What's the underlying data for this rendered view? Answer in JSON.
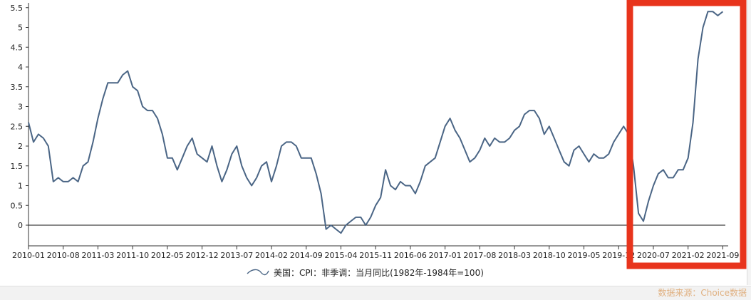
{
  "chart_data": {
    "type": "line",
    "title": "",
    "xlabel": "",
    "ylabel": "",
    "ylim": [
      -0.35,
      5.6
    ],
    "y_ticks": [
      "5.5",
      "5",
      "4.5",
      "4",
      "3.5",
      "3",
      "2.5",
      "2",
      "1.5",
      "1",
      "0.5",
      "0"
    ],
    "x_ticks": [
      "2010-01",
      "2010-08",
      "2011-03",
      "2011-10",
      "2012-05",
      "2012-12",
      "2013-07",
      "2014-02",
      "2014-09",
      "2015-04",
      "2015-11",
      "2016-06",
      "2017-01",
      "2017-08",
      "2018-03",
      "2018-10",
      "2019-05",
      "2019-12",
      "2020-07",
      "2021-02",
      "2021-09"
    ],
    "series": [
      {
        "name": "美国：CPI：非季调：当月同比(1982年-1984年=100)",
        "color": "#4a6585",
        "x_start": "2010-01",
        "values": [
          2.6,
          2.1,
          2.3,
          2.2,
          2.0,
          1.1,
          1.2,
          1.1,
          1.1,
          1.2,
          1.1,
          1.5,
          1.6,
          2.1,
          2.7,
          3.2,
          3.6,
          3.6,
          3.6,
          3.8,
          3.9,
          3.5,
          3.4,
          3.0,
          2.9,
          2.9,
          2.7,
          2.3,
          1.7,
          1.7,
          1.4,
          1.7,
          2.0,
          2.2,
          1.8,
          1.7,
          1.6,
          2.0,
          1.5,
          1.1,
          1.4,
          1.8,
          2.0,
          1.5,
          1.2,
          1.0,
          1.2,
          1.5,
          1.6,
          1.1,
          1.5,
          2.0,
          2.1,
          2.1,
          2.0,
          1.7,
          1.7,
          1.7,
          1.3,
          0.8,
          -0.1,
          0.0,
          -0.1,
          -0.2,
          0.0,
          0.1,
          0.2,
          0.2,
          0.0,
          0.2,
          0.5,
          0.7,
          1.4,
          1.0,
          0.9,
          1.1,
          1.0,
          1.0,
          0.8,
          1.1,
          1.5,
          1.6,
          1.7,
          2.1,
          2.5,
          2.7,
          2.4,
          2.2,
          1.9,
          1.6,
          1.7,
          1.9,
          2.2,
          2.0,
          2.2,
          2.1,
          2.1,
          2.2,
          2.4,
          2.5,
          2.8,
          2.9,
          2.9,
          2.7,
          2.3,
          2.5,
          2.2,
          1.9,
          1.6,
          1.5,
          1.9,
          2.0,
          1.8,
          1.6,
          1.8,
          1.7,
          1.7,
          1.8,
          2.1,
          2.3,
          2.5,
          2.3,
          1.5,
          0.3,
          0.1,
          0.6,
          1.0,
          1.3,
          1.4,
          1.2,
          1.2,
          1.4,
          1.4,
          1.7,
          2.6,
          4.2,
          5.0,
          5.4,
          5.4,
          5.3,
          5.4
        ]
      }
    ],
    "grid": false,
    "legend": "bottom-center",
    "highlight_box": {
      "color": "#e8341c"
    }
  },
  "legend_label": "美国：CPI：非季调：当月同比(1982年-1984年=100)",
  "watermark": "数据来源：Choice数据"
}
